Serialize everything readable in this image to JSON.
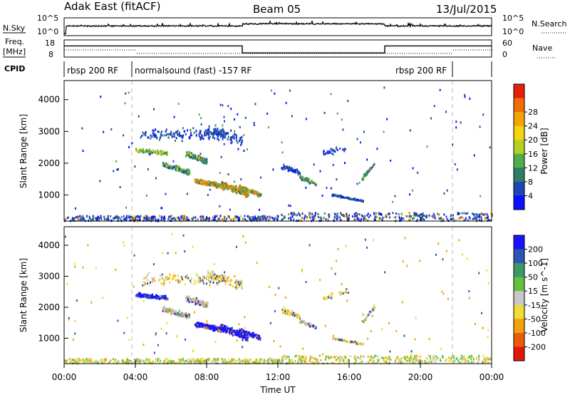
{
  "header": {
    "title_left": "Adak East (fitACF)",
    "title_center": "Beam 05",
    "title_right": "13/Jul/2015"
  },
  "top_panels": {
    "nsky_label": "N.Sky",
    "nsearch_label": "N.Search",
    "nsky_ticks": [
      "10^5",
      "10^0"
    ],
    "nsearch_ticks": [
      "10^5",
      "10^0"
    ],
    "freq_label_1": "Freq.",
    "freq_label_2": "[MHz]",
    "freq_ticks": [
      "18",
      "8"
    ],
    "nave_label": "Nave",
    "nave_ticks": [
      "60",
      "0"
    ],
    "cpid_label": "CPID",
    "cpid_segments": [
      {
        "label": "rbsp 200 RF",
        "start_h": 0,
        "end_h": 3.8
      },
      {
        "label": "normalsound (fast) -157 RF",
        "start_h": 3.8,
        "end_h": 21.8
      },
      {
        "label": "rbsp 200 RF",
        "start_h": 21.8,
        "end_h": 24
      }
    ],
    "freq_series": [
      {
        "t0": 0,
        "t1": 10,
        "mhz": 14.5
      },
      {
        "t0": 10,
        "t1": 18,
        "mhz": 10.4
      },
      {
        "t0": 18,
        "t1": 24,
        "mhz": 14.5
      }
    ]
  },
  "chart_data": [
    {
      "type": "heatmap",
      "name": "power-panel",
      "ylabel": "Slant Range [km]",
      "yticks": [
        "1000",
        "2000",
        "3000",
        "4000"
      ],
      "ylim": [
        180,
        4600
      ],
      "xlim": [
        0,
        24
      ],
      "colorbar_label": "Power [dB]",
      "colorbar_ticks": [
        "4",
        "8",
        "12",
        "16",
        "20",
        "24",
        "28"
      ],
      "colors": [
        "#0b10ff",
        "#1e46b4",
        "#2f7d67",
        "#4fae49",
        "#b6d022",
        "#f5d411",
        "#f4a408",
        "#f36c06",
        "#e81f0b"
      ]
    },
    {
      "type": "heatmap",
      "name": "velocity-panel",
      "ylabel": "Slant Range [km]",
      "yticks": [
        "1000",
        "2000",
        "3000",
        "4000"
      ],
      "ylim": [
        180,
        4600
      ],
      "xlim": [
        0,
        24
      ],
      "colorbar_label": "Velocity [m s^-1]",
      "colorbar_ticks": [
        "200",
        "100",
        "50",
        "15",
        "-15",
        "-50",
        "-100",
        "-200"
      ],
      "colors": [
        "#1a12ff",
        "#2c56b2",
        "#3c9a68",
        "#62c43c",
        "#c8c8c8",
        "#f1dc34",
        "#f3a10d",
        "#ef5a0a",
        "#e4160c"
      ]
    }
  ],
  "x_axis": {
    "ticks": [
      "00:00",
      "04:00",
      "08:00",
      "12:00",
      "16:00",
      "20:00",
      "00:00"
    ],
    "label": "Time UT"
  }
}
